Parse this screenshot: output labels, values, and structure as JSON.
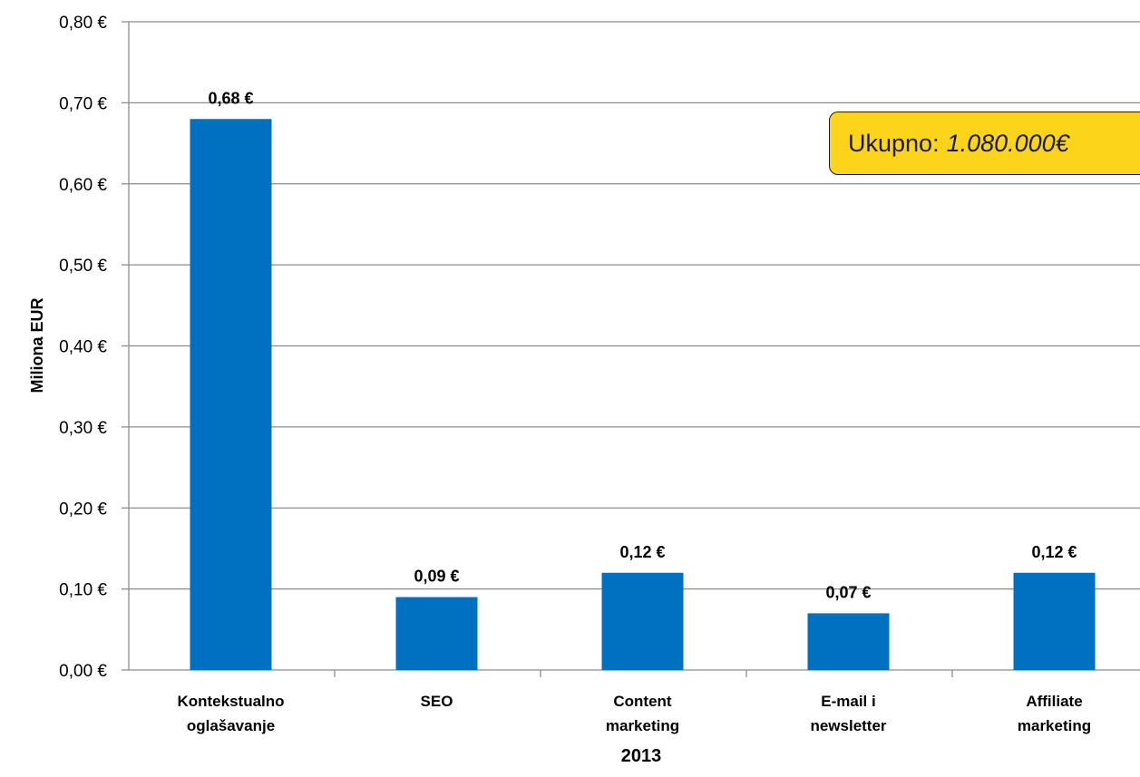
{
  "chart_data": {
    "type": "bar",
    "categories": [
      [
        "Kontekstualno",
        "oglašavanje"
      ],
      [
        "SEO"
      ],
      [
        "Content",
        "marketing"
      ],
      [
        "E-mail i",
        "newsletter"
      ],
      [
        "Affiliate",
        "marketing"
      ]
    ],
    "values": [
      0.68,
      0.09,
      0.12,
      0.07,
      0.12
    ],
    "data_labels": [
      "0,68 €",
      "0,09 €",
      "0,12 €",
      "0,07 €",
      "0,12 €"
    ],
    "ylim": [
      0,
      0.8
    ],
    "yticks": [
      0,
      0.1,
      0.2,
      0.3,
      0.4,
      0.5,
      0.6,
      0.7,
      0.8
    ],
    "ytick_labels": [
      "0,00 €",
      "0,10 €",
      "0,20 €",
      "0,30 €",
      "0,40 €",
      "0,50 €",
      "0,60 €",
      "0,70 €",
      "0,80 €"
    ],
    "ylabel": "Miliona EUR",
    "xlabel": "2013",
    "grid": true,
    "bar_color": "#0070c0",
    "grid_color": "#8c8c8c"
  },
  "annotation": {
    "label": "Ukupno:",
    "value": "1.080.000€",
    "background_color": "#fcd419"
  }
}
